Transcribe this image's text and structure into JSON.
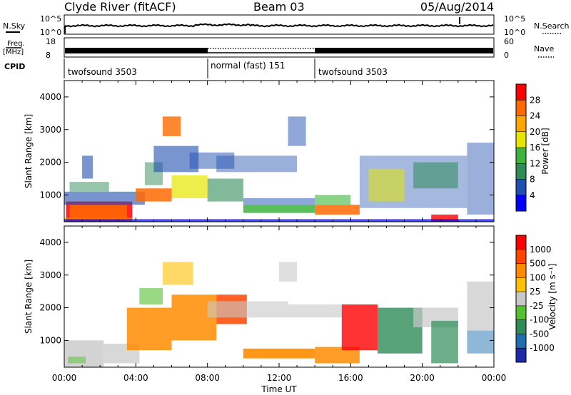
{
  "header": {
    "title": "Clyde River (fitACF)",
    "beam": "Beam 03",
    "date": "05/Aug/2014"
  },
  "status_panels": {
    "nsky_label": "N.Sky",
    "nsky_ticks": [
      "10^5",
      "10^0"
    ],
    "nsearch_label": "N.Search",
    "nsearch_ticks": [
      "10^5",
      "10^0"
    ],
    "freq_label_line1": "Freq.",
    "freq_label_line2": "[MHz]",
    "freq_ticks": [
      "18",
      "8"
    ],
    "nave_label": "Nave",
    "nave_ticks": [
      "60",
      "0"
    ],
    "cpid_label": "CPID",
    "cpid_segments": [
      {
        "label": "twofsound 3503",
        "start_h": 0,
        "end_h": 8
      },
      {
        "label": "normal (fast) 151",
        "start_h": 8,
        "end_h": 14
      },
      {
        "label": "twofsound 3503",
        "start_h": 14,
        "end_h": 24
      }
    ]
  },
  "chart_data": [
    {
      "type": "heatmap",
      "title": "",
      "xlabel": "Time UT",
      "ylabel": "Slant Range [km]",
      "x_ticks": [
        "00:00",
        "04:00",
        "08:00",
        "12:00",
        "16:00",
        "20:00",
        "00:00"
      ],
      "y_ticks": [
        1000,
        2000,
        3000,
        4000
      ],
      "xlim_hours": [
        0,
        24
      ],
      "ylim_km": [
        180,
        4500
      ],
      "colorbar": {
        "label": "Power [dB]",
        "ticks": [
          "4",
          "8",
          "12",
          "16",
          "20",
          "24",
          "28"
        ],
        "colors": [
          "#0000ff",
          "#1f4fb0",
          "#2e8b57",
          "#3db43d",
          "#e6e600",
          "#ffa500",
          "#ff6a00",
          "#ff0000"
        ]
      }
    },
    {
      "type": "heatmap",
      "title": "",
      "xlabel": "Time UT",
      "ylabel": "Slant Range [km]",
      "x_ticks": [
        "00:00",
        "04:00",
        "08:00",
        "12:00",
        "16:00",
        "20:00",
        "00:00"
      ],
      "y_ticks": [
        1000,
        2000,
        3000,
        4000
      ],
      "xlim_hours": [
        0,
        24
      ],
      "ylim_km": [
        180,
        4500
      ],
      "colorbar": {
        "label": "Velocity [m s⁻¹]",
        "ticks": [
          "1000",
          "500",
          "100",
          "25",
          "-25",
          "-100",
          "-500",
          "-1000"
        ],
        "colors": [
          "#1c2aa8",
          "#1f6fb0",
          "#2e8b57",
          "#55c030",
          "#c8c8c8",
          "#ffc000",
          "#ff8c00",
          "#ff4500",
          "#ff0000"
        ]
      }
    }
  ]
}
